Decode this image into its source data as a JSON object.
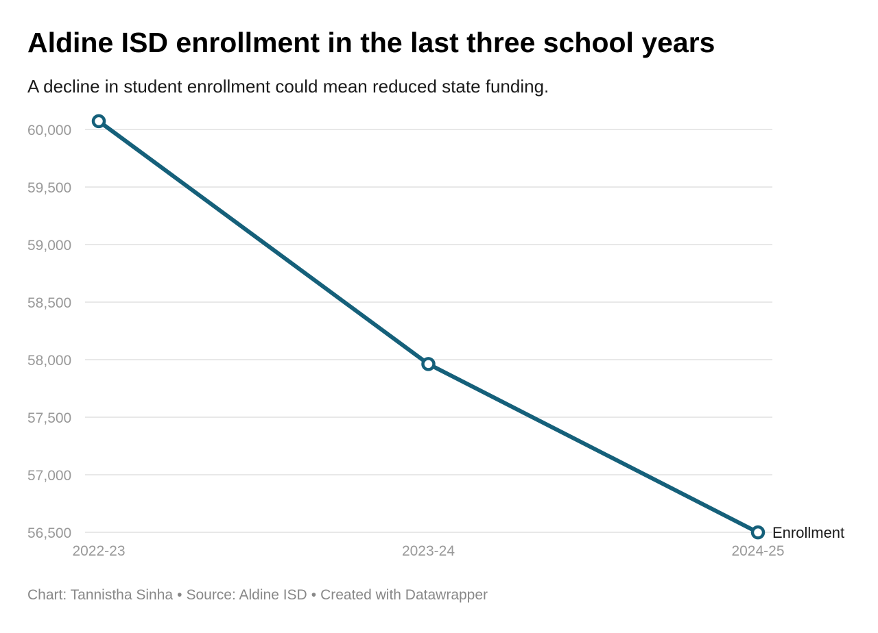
{
  "header": {
    "title": "Aldine ISD enrollment in the last three school years",
    "subtitle": "A decline in student enrollment could mean reduced state funding."
  },
  "footer": {
    "chart_credit": "Chart: Tannistha Sinha",
    "separator": "•",
    "source": "Source: Aldine ISD",
    "created_with": "Created with Datawrapper"
  },
  "colors": {
    "line": "#15607a",
    "grid": "#e0e0e0",
    "tick_text": "#999999",
    "marker_fill": "#ffffff"
  },
  "chart_data": {
    "type": "line",
    "title": "Aldine ISD enrollment in the last three school years",
    "subtitle": "A decline in student enrollment could mean reduced state funding.",
    "categories": [
      "2022-23",
      "2023-24",
      "2024-25"
    ],
    "series": [
      {
        "name": "Enrollment",
        "values": [
          60072,
          57962,
          56499
        ]
      }
    ],
    "ylim": [
      56500,
      60000
    ],
    "yticks": [
      56500,
      57000,
      57500,
      58000,
      58500,
      59000,
      59500,
      60000
    ],
    "ytick_labels": [
      "56,500",
      "57,000",
      "57,500",
      "58,000",
      "58,500",
      "59,000",
      "59,500",
      "60,000"
    ],
    "xlabel": "",
    "ylabel": "",
    "grid": true,
    "legend": "direct label at line end"
  }
}
